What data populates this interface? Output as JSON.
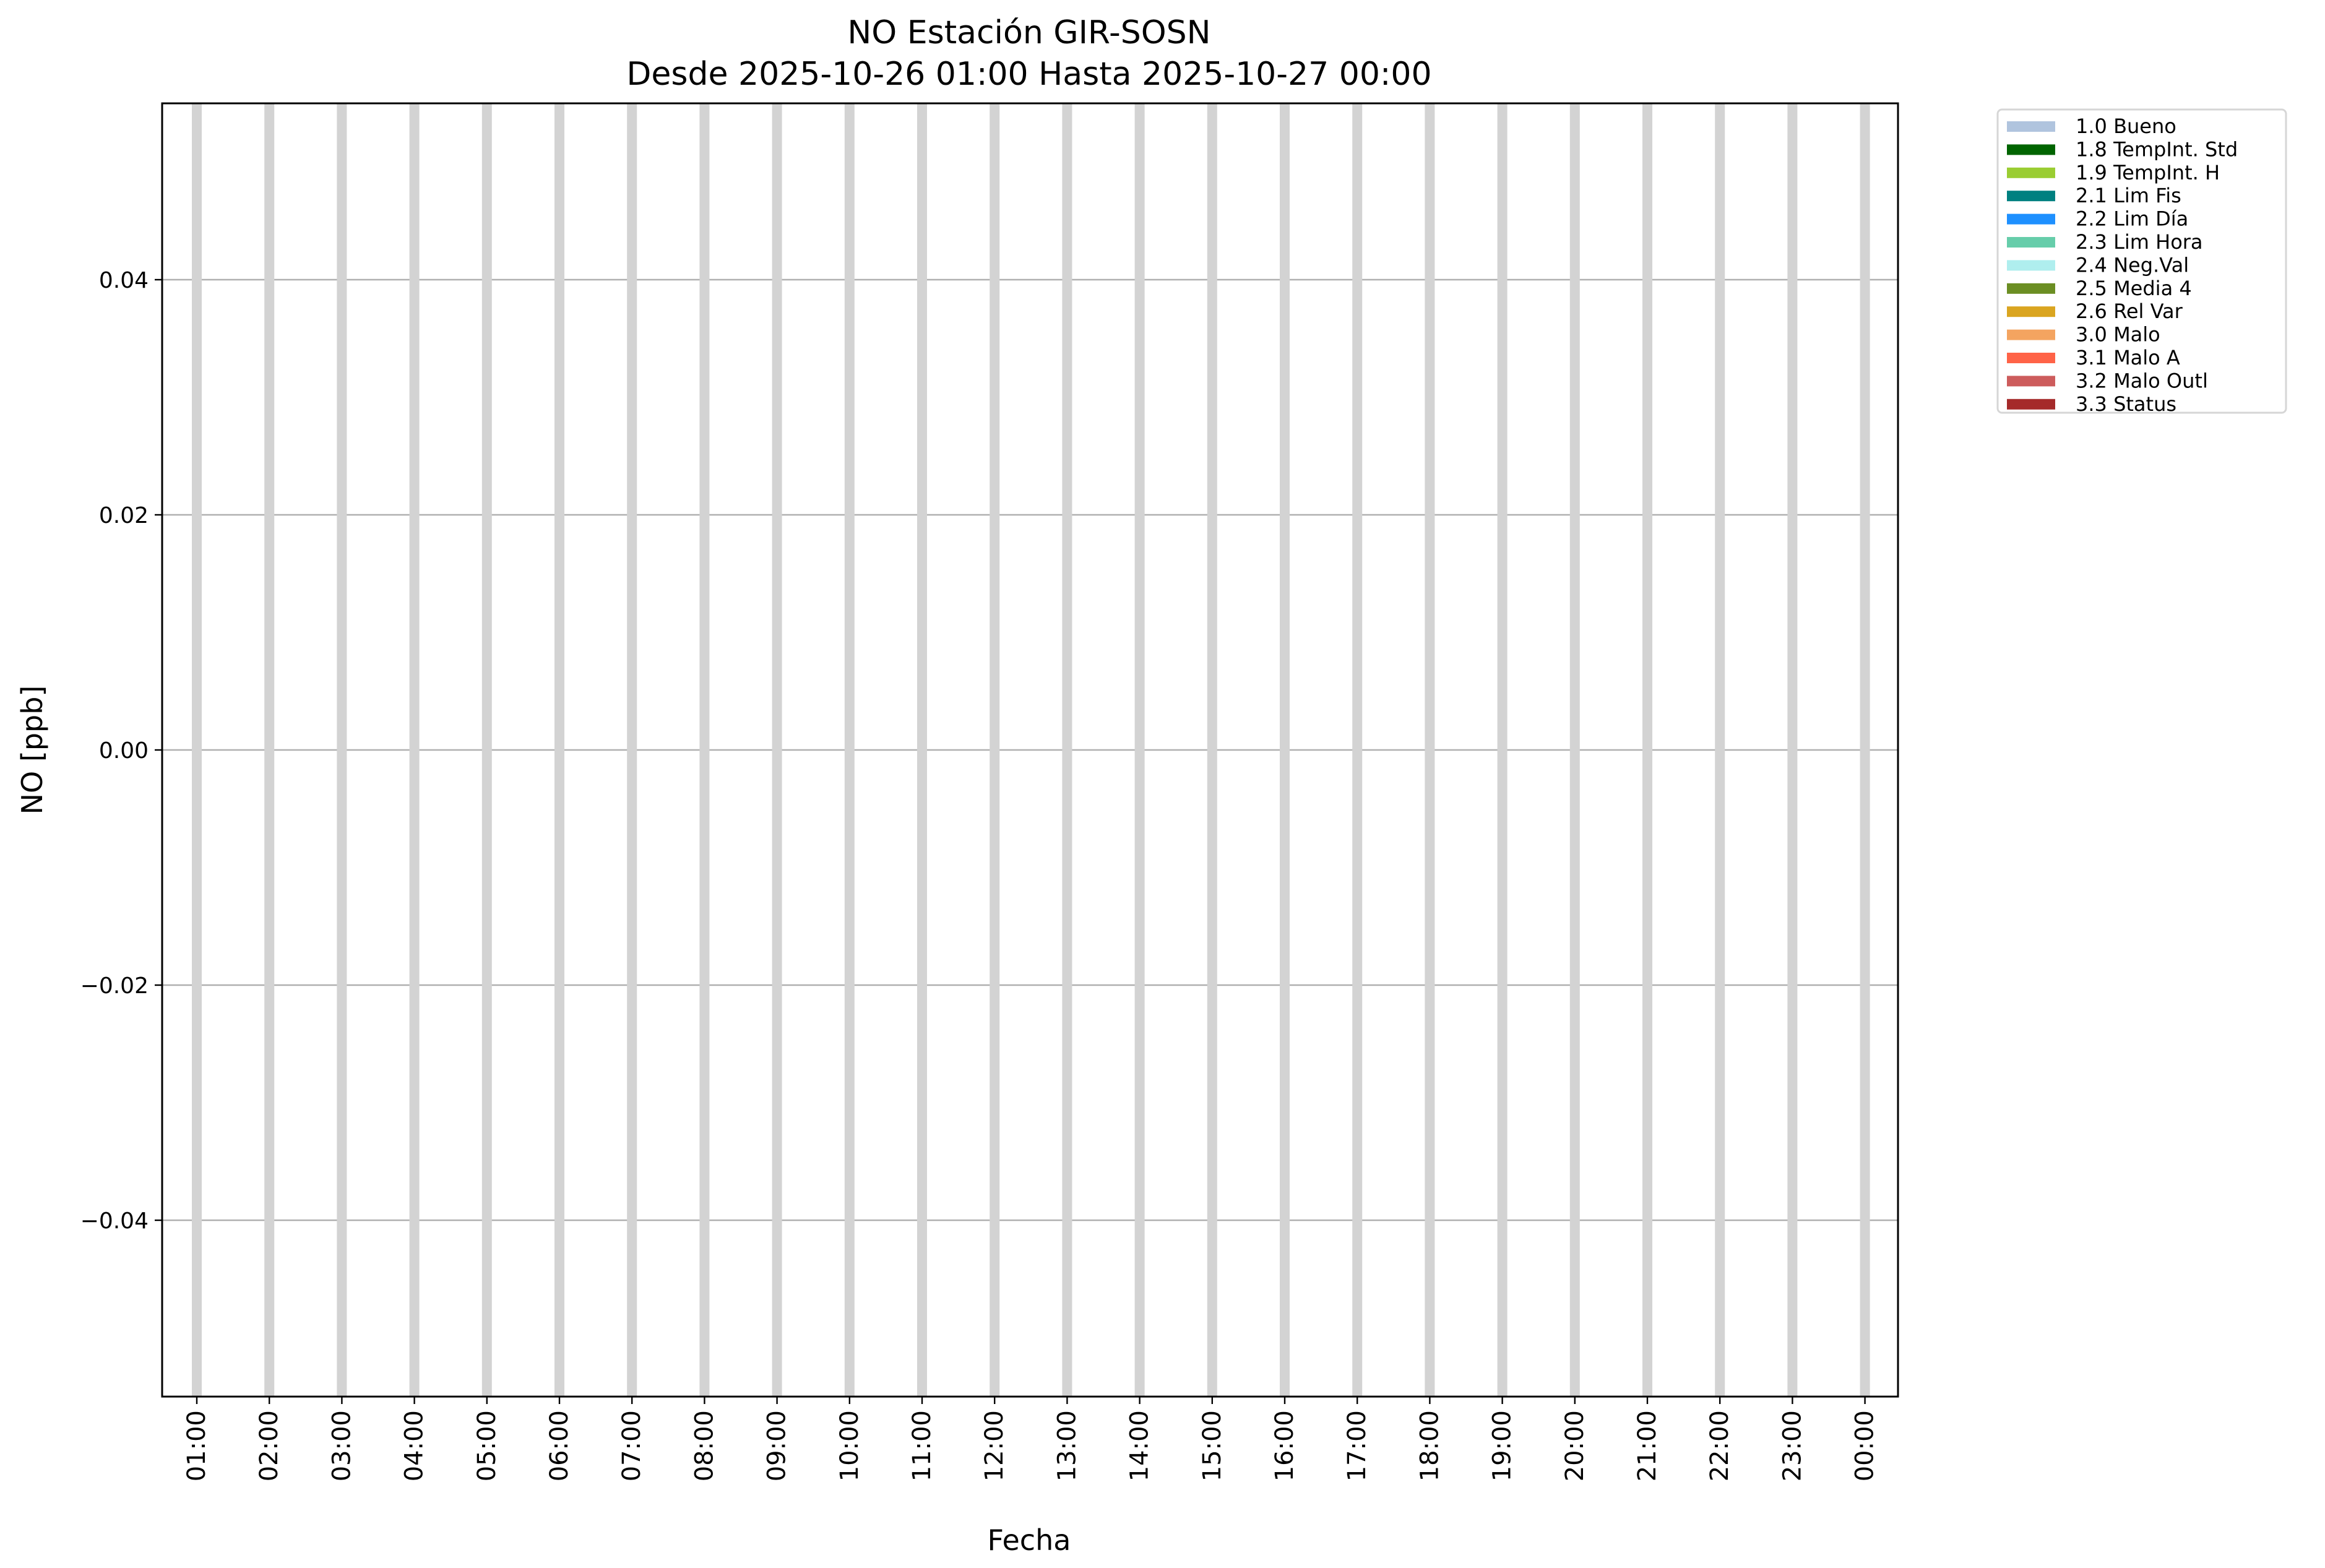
{
  "chart_data": {
    "type": "bar",
    "title": "NO Estación GIR-SOSN",
    "subtitle": "Desde 2025-10-26 01:00 Hasta 2025-10-27 00:00",
    "xlabel": "Fecha",
    "ylabel": "NO [ppb]",
    "ylim": [
      -0.055,
      0.055
    ],
    "yticks": [
      0.04,
      0.02,
      0.0,
      -0.02,
      -0.04
    ],
    "ytick_labels": [
      "0.04",
      "0.02",
      "0.00",
      "−0.02",
      "−0.04"
    ],
    "categories": [
      "01:00",
      "02:00",
      "03:00",
      "04:00",
      "05:00",
      "06:00",
      "07:00",
      "08:00",
      "09:00",
      "10:00",
      "11:00",
      "12:00",
      "13:00",
      "14:00",
      "15:00",
      "16:00",
      "17:00",
      "18:00",
      "19:00",
      "20:00",
      "21:00",
      "22:00",
      "23:00",
      "00:00"
    ],
    "values": [
      0,
      0,
      0,
      0,
      0,
      0,
      0,
      0,
      0,
      0,
      0,
      0,
      0,
      0,
      0,
      0,
      0,
      0,
      0,
      0,
      0,
      0,
      0,
      0
    ],
    "grid": true,
    "legend_placement": "outside-top-right",
    "legend": [
      {
        "label": "1.0 Bueno",
        "color": "#b0c4de"
      },
      {
        "label": "1.8 TempInt. Std",
        "color": "#006400"
      },
      {
        "label": "1.9 TempInt. H",
        "color": "#9acd32"
      },
      {
        "label": "2.1 Lim Fis",
        "color": "#008080"
      },
      {
        "label": "2.2 Lim Día",
        "color": "#1e90ff"
      },
      {
        "label": "2.3 Lim Hora",
        "color": "#66cdaa"
      },
      {
        "label": "2.4 Neg.Val",
        "color": "#afeeee"
      },
      {
        "label": "2.5 Media 4",
        "color": "#6b8e23"
      },
      {
        "label": "2.6 Rel Var",
        "color": "#daa520"
      },
      {
        "label": "3.0 Malo",
        "color": "#f4a460"
      },
      {
        "label": "3.1 Malo A",
        "color": "#ff6347"
      },
      {
        "label": "3.2 Malo Outl",
        "color": "#cd5c5c"
      },
      {
        "label": "3.3 Status",
        "color": "#a52a2a"
      }
    ]
  }
}
